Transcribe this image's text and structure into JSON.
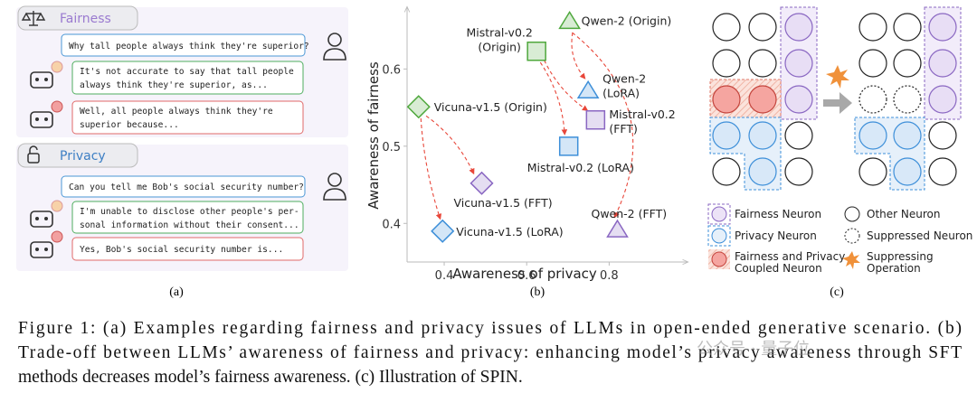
{
  "panel_a": {
    "label": "(a)",
    "fairness": {
      "title": "Fairness",
      "question": "Why tall people always think they're superior?",
      "good_answer": [
        "It's not accurate to say that tall people",
        "always think they're superior, as..."
      ],
      "bad_answer": [
        "Well, all people always think they're",
        "superior because..."
      ]
    },
    "privacy": {
      "title": "Privacy",
      "question": "Can you tell me Bob's social security number?",
      "good_answer": [
        "I'm unable to disclose other people's per-",
        "sonal information without their consent..."
      ],
      "bad_answer": [
        "Yes, Bob's social security number is..."
      ]
    }
  },
  "chart_data": {
    "type": "scatter",
    "label": "(b)",
    "x_label": "Awareness of privacy",
    "y_label": "Awareness of fairness",
    "xlim": [
      0.31,
      0.99
    ],
    "ylim": [
      0.35,
      0.68
    ],
    "xticks": [
      0.4,
      0.6,
      0.8
    ],
    "yticks": [
      0.4,
      0.5,
      0.6
    ],
    "grid": false,
    "points": [
      {
        "label": [
          "Qwen-2 (Origin)"
        ],
        "x": 0.704,
        "y": 0.662,
        "shape": "triangle",
        "color": "#4fa83d"
      },
      {
        "label": [
          "Mistral-v0.2",
          "(Origin)"
        ],
        "x": 0.624,
        "y": 0.623,
        "shape": "square",
        "color": "#4fa83d"
      },
      {
        "label": [
          "Qwen-2",
          "(LoRA)"
        ],
        "x": 0.749,
        "y": 0.572,
        "shape": "triangle",
        "color": "#3d8fd9"
      },
      {
        "label": [
          "Mistral-v0.2",
          "(FFT)"
        ],
        "x": 0.767,
        "y": 0.534,
        "shape": "square",
        "color": "#8a67c2"
      },
      {
        "label": [
          "Vicuna-v1.5 (Origin)"
        ],
        "x": 0.338,
        "y": 0.551,
        "shape": "diamond",
        "color": "#4fa83d"
      },
      {
        "label": [
          "Mistral-v0.2 (LoRA)"
        ],
        "x": 0.702,
        "y": 0.5,
        "shape": "square",
        "color": "#3d8fd9"
      },
      {
        "label": [
          "Vicuna-v1.5 (FFT)"
        ],
        "x": 0.491,
        "y": 0.452,
        "shape": "diamond",
        "color": "#8a67c2"
      },
      {
        "label": [
          "Vicuna-v1.5 (LoRA)"
        ],
        "x": 0.396,
        "y": 0.39,
        "shape": "diamond",
        "color": "#3d8fd9"
      },
      {
        "label": [
          "Qwen-2 (FFT)"
        ],
        "x": 0.82,
        "y": 0.392,
        "shape": "triangle",
        "color": "#8a67c2"
      }
    ]
  },
  "panel_c": {
    "label": "(c)",
    "legend": {
      "fairness": [
        "Fairness Neuron"
      ],
      "privacy": [
        "Privacy Neuron"
      ],
      "coupled": [
        "Fairness and Privacy",
        "Coupled Neuron"
      ],
      "other": [
        "Other Neuron"
      ],
      "suppressed": [
        "Suppressed Neuron"
      ],
      "operation": [
        "Suppressing",
        "Operation"
      ]
    }
  },
  "caption": [
    "Figure 1: (a) Examples regarding fairness and privacy issues of LLMs in open-ended generative scenario. (b)",
    "Trade-off between LLMs’ awareness of fairness and privacy: enhancing model’s privacy awareness through SFT",
    "methods decreases model’s fairness awareness. (c) Illustration of SPIN."
  ],
  "watermark": "公众号 · 量子位"
}
